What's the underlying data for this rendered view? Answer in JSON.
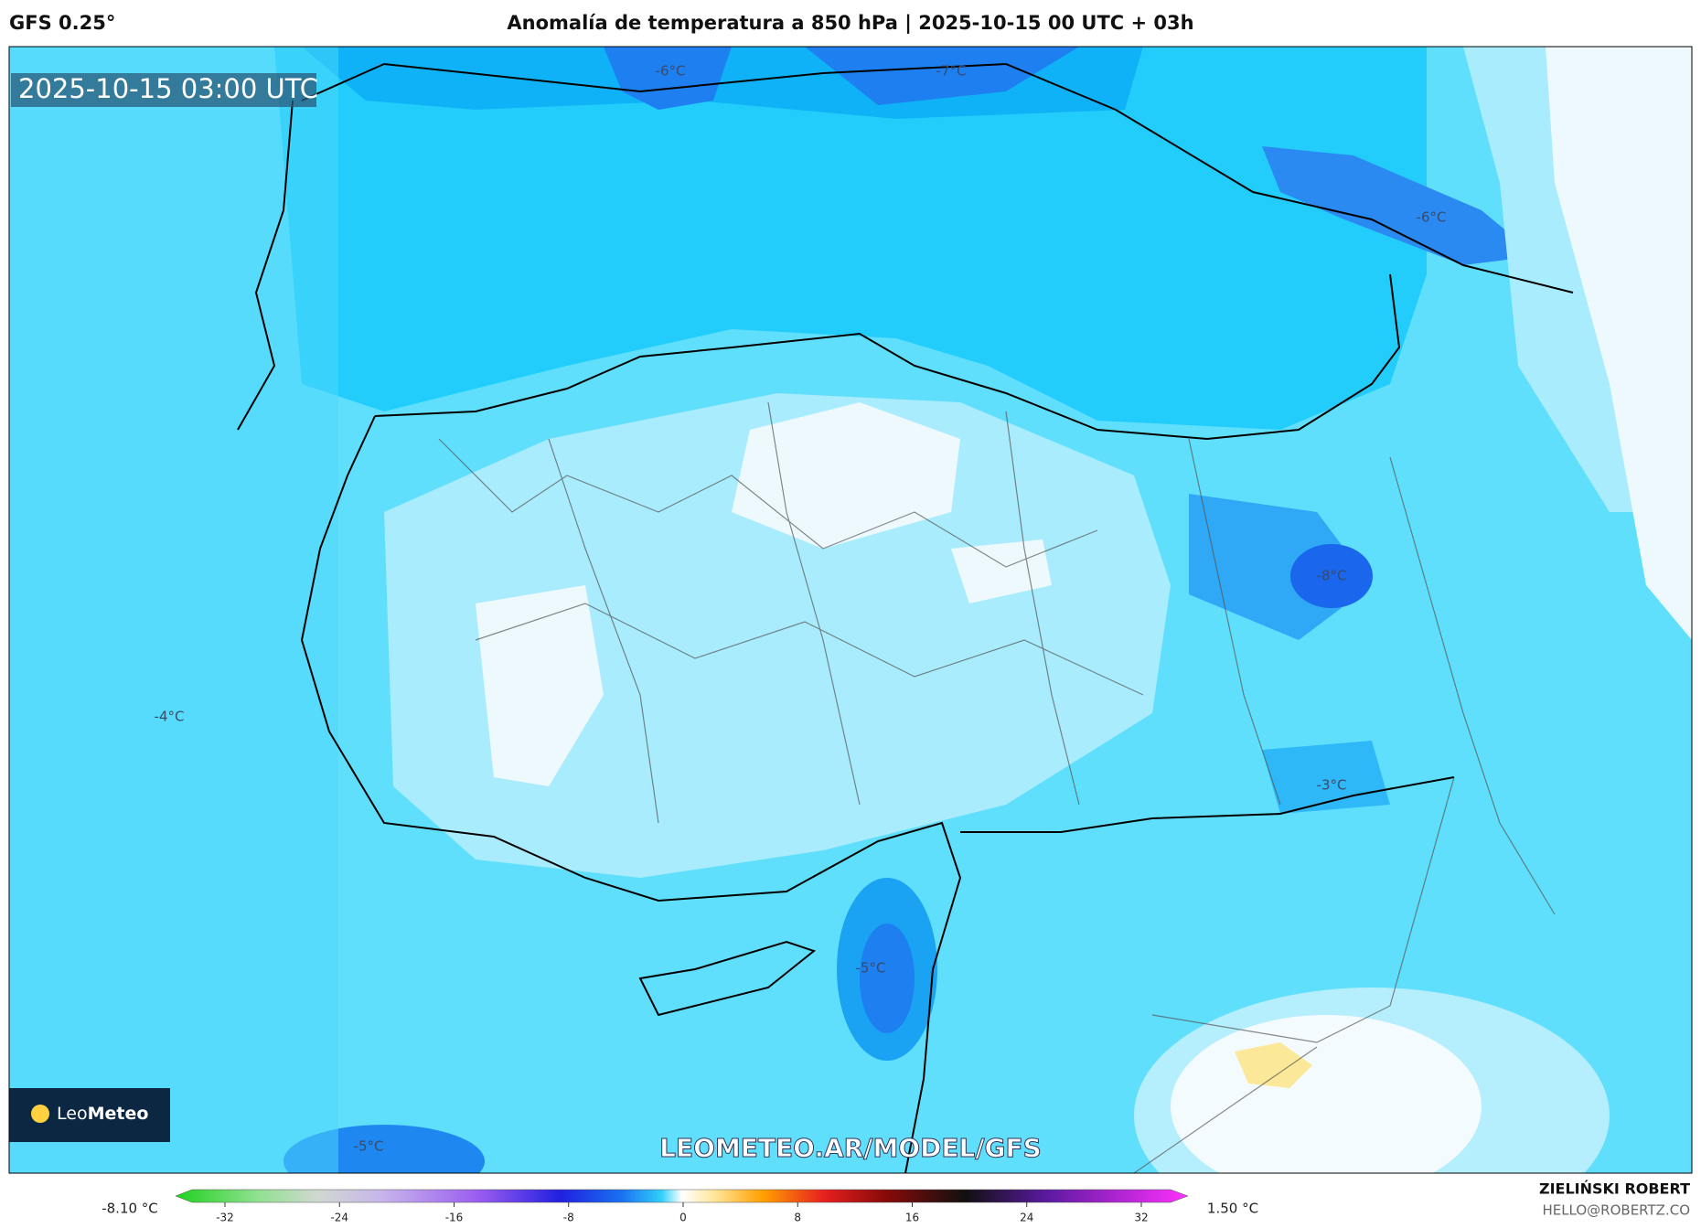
{
  "header": {
    "model": "GFS 0.25°",
    "title": "Anomalía de temperatura a 850 hPa | 2025-10-15 00 UTC + 03h"
  },
  "map": {
    "timestamp": "2025-10-15 03:00 UTC",
    "contour_labels": [
      "-6°C",
      "-7°C",
      "-6°C",
      "-8°C",
      "-4°C",
      "-3°C",
      "-5°C",
      "-5°C"
    ],
    "watermark": "LEOMETEO.AR/MODEL/GFS",
    "logo_light": "Leo",
    "logo_bold": "Meteo"
  },
  "colorbar": {
    "min_label": "-8.10 °C",
    "max_label": "1.50 °C",
    "ticks": [
      -32,
      -24,
      -16,
      -8,
      0,
      8,
      16,
      24,
      32
    ]
  },
  "credits": {
    "author": "ZIELIŃSKI ROBERT",
    "email": "HELLO@ROBERTZ.CO"
  }
}
